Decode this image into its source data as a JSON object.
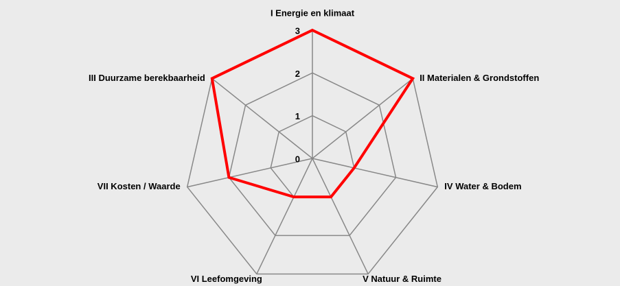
{
  "chart_data": {
    "type": "radar",
    "categories": [
      "I Energie en klimaat",
      "II Materialen & Grondstoffen",
      "IV Water & Bodem",
      "V Natuur & Ruimte",
      "VI Leefomgeving",
      "VII Kosten / Waarde",
      "III Duurzame berekbaarheid"
    ],
    "values": [
      3,
      3,
      1,
      1,
      1,
      2,
      3
    ],
    "color": "#ff0000",
    "ylim": [
      0,
      3
    ],
    "yticks": [
      0,
      1,
      2,
      3
    ],
    "grid": true
  }
}
